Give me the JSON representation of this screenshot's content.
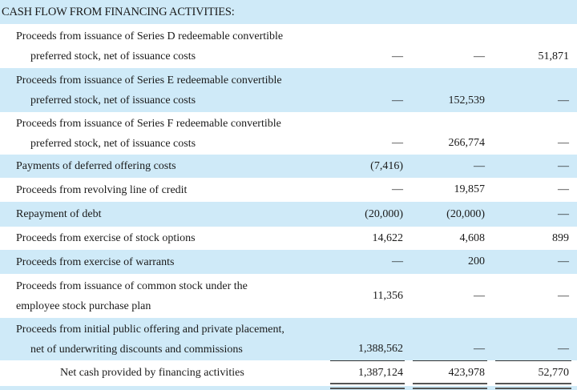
{
  "section_title": "CASH FLOW FROM FINANCING ACTIVITIES:",
  "rows": [
    {
      "label": [
        "Proceeds from issuance of Series D redeemable convertible",
        "preferred stock, net of issuance costs"
      ],
      "values": [
        "—",
        "—",
        "51,871"
      ]
    },
    {
      "label": [
        "Proceeds from issuance of Series E redeemable convertible",
        "preferred stock, net of issuance costs"
      ],
      "values": [
        "—",
        "152,539",
        "—"
      ]
    },
    {
      "label": [
        "Proceeds from issuance of Series F redeemable convertible",
        "preferred stock, net of issuance costs"
      ],
      "values": [
        "—",
        "266,774",
        "—"
      ]
    },
    {
      "label": [
        "Payments of deferred offering costs"
      ],
      "values": [
        "(7,416)",
        "—",
        "—"
      ]
    },
    {
      "label": [
        "Proceeds from revolving line of credit"
      ],
      "values": [
        "—",
        "19,857",
        "—"
      ]
    },
    {
      "label": [
        "Repayment of debt"
      ],
      "values": [
        "(20,000)",
        "(20,000)",
        "—"
      ]
    },
    {
      "label": [
        "Proceeds from exercise of stock options"
      ],
      "values": [
        "14,622",
        "4,608",
        "899"
      ]
    },
    {
      "label": [
        "Proceeds from exercise of warrants"
      ],
      "values": [
        "—",
        "200",
        "—"
      ]
    },
    {
      "label": [
        "Proceeds from issuance of common stock under the",
        "employee stock purchase plan"
      ],
      "values": [
        "11,356",
        "—",
        "—"
      ]
    },
    {
      "label": [
        "Proceeds from initial public offering and private placement,",
        "net of underwriting discounts and commissions"
      ],
      "values": [
        "1,388,562",
        "—",
        "—"
      ]
    }
  ],
  "total": {
    "label": "Net cash provided by financing activities",
    "values": [
      "1,387,124",
      "423,978",
      "52,770"
    ]
  }
}
